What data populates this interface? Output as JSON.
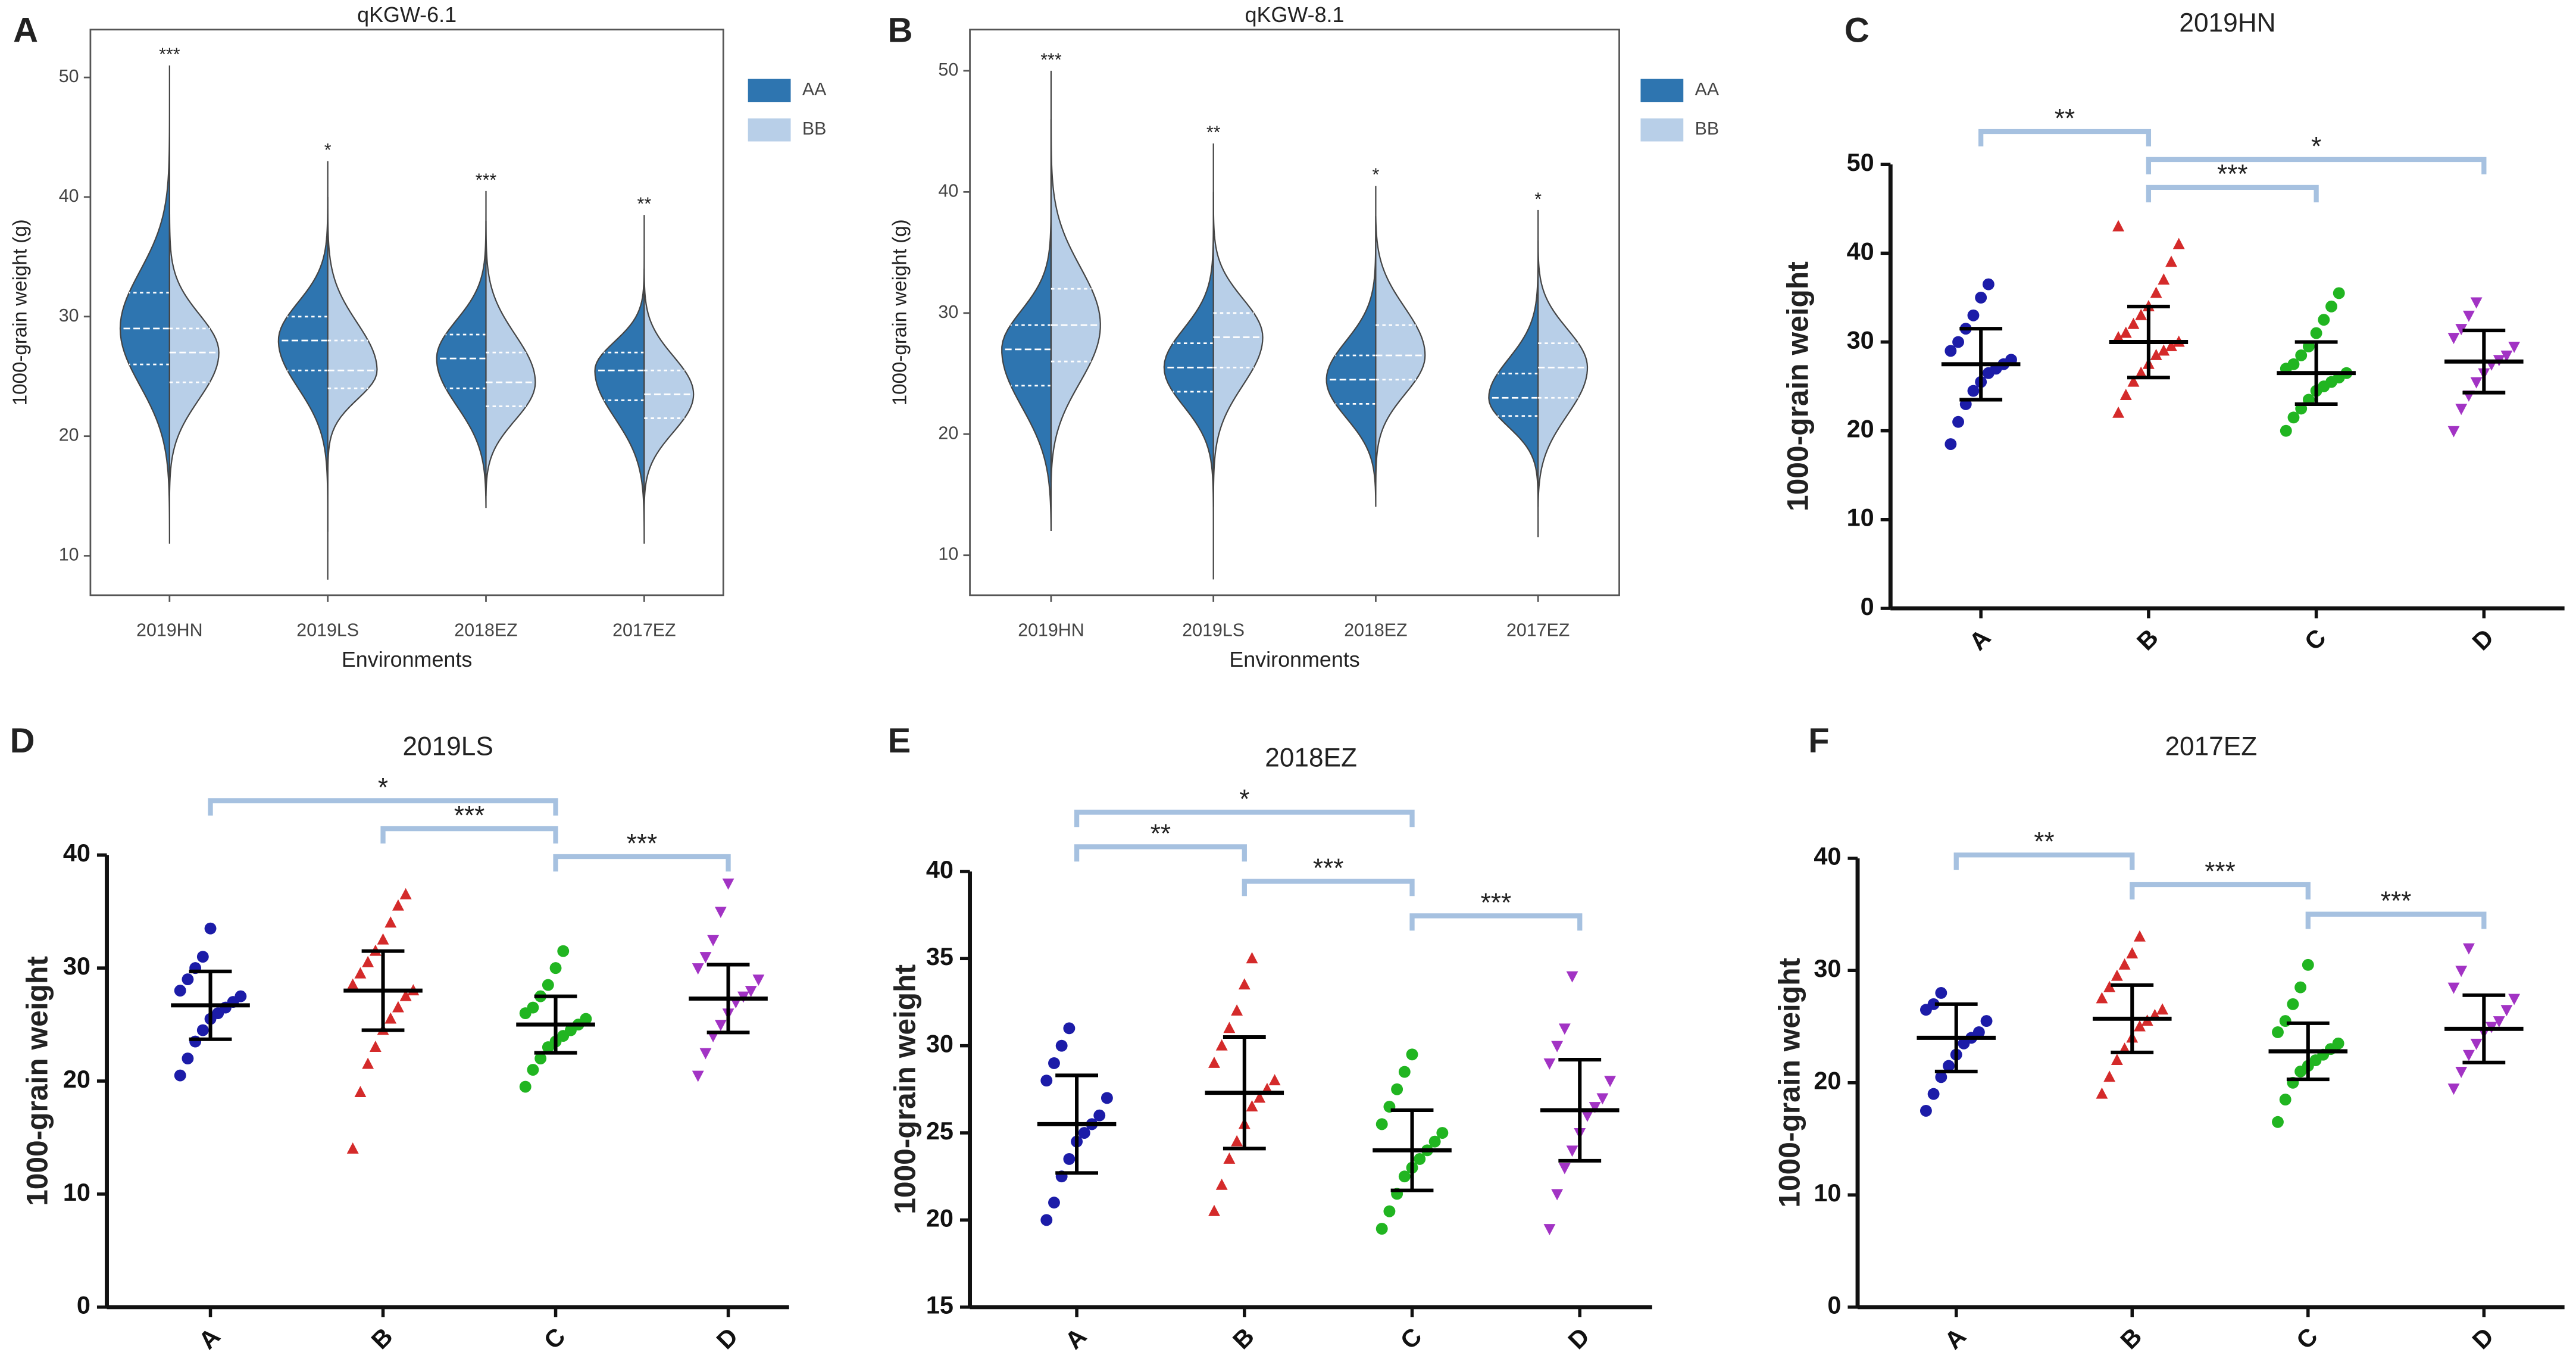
{
  "chart_data": [
    {
      "type": "violin",
      "panel_label": "A",
      "title": "qKGW-6.1",
      "xlabel": "Environments",
      "ylabel": "1000-grain weight (g)",
      "categories": [
        "2019HN",
        "2019LS",
        "2018EZ",
        "2017EZ"
      ],
      "annotations": [
        "***",
        "*",
        "***",
        "**"
      ],
      "ylim": [
        6.7,
        54
      ],
      "yticks": [
        10,
        20,
        30,
        40,
        50
      ],
      "series": [
        {
          "name": "AA",
          "color": "#2e75b0",
          "values": [
            {
              "min": 11,
              "q1": 26,
              "median": 29,
              "q3": 32,
              "max": 51
            },
            {
              "min": 12,
              "q1": 25.5,
              "median": 28,
              "q3": 30,
              "max": 43
            },
            {
              "min": 14,
              "q1": 24,
              "median": 26.5,
              "q3": 28.5,
              "max": 40.5
            },
            {
              "min": 11,
              "q1": 23,
              "median": 25.5,
              "q3": 27,
              "max": 38.5
            }
          ]
        },
        {
          "name": "BB",
          "color": "#b8cfe8",
          "values": [
            {
              "min": 15,
              "q1": 24.5,
              "median": 27,
              "q3": 29,
              "max": 45
            },
            {
              "min": 8,
              "q1": 24,
              "median": 25.5,
              "q3": 28,
              "max": 40
            },
            {
              "min": 15,
              "q1": 22.5,
              "median": 24.5,
              "q3": 27,
              "max": 38
            },
            {
              "min": 14,
              "q1": 21.5,
              "median": 23.5,
              "q3": 25.5,
              "max": 34
            }
          ]
        }
      ]
    },
    {
      "type": "violin",
      "panel_label": "B",
      "title": "qKGW-8.1",
      "xlabel": "Environments",
      "ylabel": "1000-grain weight (g)",
      "categories": [
        "2019HN",
        "2019LS",
        "2018EZ",
        "2017EZ"
      ],
      "annotations": [
        "***",
        "**",
        "*",
        "*"
      ],
      "ylim": [
        6.7,
        53.4
      ],
      "yticks": [
        10,
        20,
        30,
        40,
        50
      ],
      "series": [
        {
          "name": "AA",
          "color": "#2e75b0",
          "values": [
            {
              "min": 12,
              "q1": 24,
              "median": 27,
              "q3": 29,
              "max": 50
            },
            {
              "min": 8,
              "q1": 23.5,
              "median": 25.5,
              "q3": 27.5,
              "max": 44
            },
            {
              "min": 14,
              "q1": 22.5,
              "median": 24.5,
              "q3": 26.5,
              "max": 40.5
            },
            {
              "min": 11.5,
              "q1": 21.5,
              "median": 23,
              "q3": 25,
              "max": 38.5
            }
          ]
        },
        {
          "name": "BB",
          "color": "#b8cfe8",
          "values": [
            {
              "min": 16,
              "q1": 26,
              "median": 29,
              "q3": 32,
              "max": 46
            },
            {
              "min": 14,
              "q1": 25.5,
              "median": 28,
              "q3": 30,
              "max": 40
            },
            {
              "min": 15,
              "q1": 24.5,
              "median": 26.5,
              "q3": 29,
              "max": 38
            },
            {
              "min": 14,
              "q1": 23,
              "median": 25.5,
              "q3": 27.5,
              "max": 36
            }
          ]
        }
      ]
    },
    {
      "type": "dot",
      "panel_label": "C",
      "title": "2019HN",
      "ylabel": "1000-grain weight",
      "categories": [
        "A",
        "B",
        "C",
        "D"
      ],
      "ylim": [
        0,
        50
      ],
      "yticks": [
        0,
        10,
        20,
        30,
        40,
        50
      ],
      "groups": [
        {
          "color": "#1c1ca8",
          "marker": "circle",
          "mean": 27.5,
          "sd": 4,
          "values": [
            18.5,
            21,
            23,
            24.5,
            25.5,
            26.5,
            27,
            27.5,
            28,
            29,
            30,
            31.5,
            33,
            35,
            36.5
          ]
        },
        {
          "color": "#d42a2a",
          "marker": "triangle-up",
          "mean": 30,
          "sd": 4,
          "values": [
            22,
            24,
            25.5,
            26.5,
            27.5,
            28.5,
            29,
            29.5,
            30,
            30.5,
            31,
            32,
            33,
            34,
            35.5,
            37,
            39,
            41,
            43
          ]
        },
        {
          "color": "#21b521",
          "marker": "circle",
          "mean": 26.5,
          "sd": 3.5,
          "values": [
            20,
            21.5,
            22.5,
            23.5,
            24.5,
            25,
            25.5,
            26,
            26.5,
            27,
            27.5,
            28.5,
            29.5,
            31,
            32.5,
            34,
            35.5
          ]
        },
        {
          "color": "#a233c4",
          "marker": "triangle-down",
          "mean": 27.8,
          "sd": 3.5,
          "values": [
            20,
            22.5,
            24,
            25.5,
            26.5,
            27.5,
            28,
            28.5,
            29.5,
            30.5,
            31.5,
            33,
            34.5
          ]
        }
      ],
      "comparisons": [
        {
          "pair": [
            "A",
            "B"
          ],
          "label": "**"
        },
        {
          "pair": [
            "B",
            "D"
          ],
          "label": "*"
        },
        {
          "pair": [
            "B",
            "C"
          ],
          "label": "***"
        }
      ]
    },
    {
      "type": "dot",
      "panel_label": "D",
      "title": "2019LS",
      "ylabel": "1000-grain weight",
      "categories": [
        "A",
        "B",
        "C",
        "D"
      ],
      "ylim": [
        0,
        40
      ],
      "yticks": [
        0,
        10,
        20,
        30,
        40
      ],
      "groups": [
        {
          "color": "#1c1ca8",
          "marker": "circle",
          "mean": 26.7,
          "sd": 3,
          "values": [
            20.5,
            22,
            23.5,
            24.5,
            25.5,
            26,
            26.5,
            27,
            27.5,
            28,
            29,
            30,
            31,
            33.5
          ]
        },
        {
          "color": "#d42a2a",
          "marker": "triangle-up",
          "mean": 28,
          "sd": 3.5,
          "values": [
            14,
            19,
            21.5,
            23,
            24.5,
            25.5,
            26.5,
            27.5,
            28,
            28.5,
            29.5,
            30.5,
            31.5,
            32.5,
            34,
            35.5,
            36.5
          ]
        },
        {
          "color": "#21b521",
          "marker": "circle",
          "mean": 25,
          "sd": 2.5,
          "values": [
            19.5,
            21,
            22,
            23,
            23.5,
            24,
            24.5,
            25,
            25.5,
            26,
            26.5,
            27.5,
            28.5,
            30,
            31.5
          ]
        },
        {
          "color": "#a233c4",
          "marker": "triangle-down",
          "mean": 27.3,
          "sd": 3,
          "values": [
            20.5,
            22.5,
            24,
            25,
            26,
            27,
            27.5,
            28,
            29,
            30,
            31,
            32.5,
            35,
            37.5
          ]
        }
      ],
      "comparisons": [
        {
          "pair": [
            "A",
            "C"
          ],
          "label": "*"
        },
        {
          "pair": [
            "B",
            "C"
          ],
          "label": "***"
        },
        {
          "pair": [
            "C",
            "D"
          ],
          "label": "***"
        }
      ]
    },
    {
      "type": "dot",
      "panel_label": "E",
      "title": "2018EZ",
      "ylabel": "1000-grain weight",
      "categories": [
        "A",
        "B",
        "C",
        "D"
      ],
      "ylim": [
        15,
        40
      ],
      "yticks": [
        15,
        20,
        25,
        30,
        35,
        40
      ],
      "groups": [
        {
          "color": "#1c1ca8",
          "marker": "circle",
          "mean": 25.5,
          "sd": 2.8,
          "values": [
            20,
            21,
            22.5,
            23.5,
            24.5,
            25,
            25.5,
            26,
            27,
            28,
            29,
            30,
            31
          ]
        },
        {
          "color": "#d42a2a",
          "marker": "triangle-up",
          "mean": 27.3,
          "sd": 3.2,
          "values": [
            20.5,
            22,
            23.5,
            24.5,
            25.5,
            26.5,
            27,
            27.5,
            28,
            29,
            30,
            31,
            32,
            33.5,
            35
          ]
        },
        {
          "color": "#21b521",
          "marker": "circle",
          "mean": 24,
          "sd": 2.3,
          "values": [
            19.5,
            20.5,
            21.5,
            22.5,
            23,
            23.5,
            24,
            24.5,
            25,
            25.5,
            26.5,
            27.5,
            28.5,
            29.5
          ]
        },
        {
          "color": "#a233c4",
          "marker": "triangle-down",
          "mean": 26.3,
          "sd": 2.9,
          "values": [
            19.5,
            21.5,
            23,
            24,
            25,
            26,
            26.5,
            27,
            28,
            29,
            30,
            31,
            34
          ]
        }
      ],
      "comparisons": [
        {
          "pair": [
            "A",
            "C"
          ],
          "label": "*"
        },
        {
          "pair": [
            "A",
            "B"
          ],
          "label": "**"
        },
        {
          "pair": [
            "B",
            "C"
          ],
          "label": "***"
        },
        {
          "pair": [
            "C",
            "D"
          ],
          "label": "***"
        }
      ]
    },
    {
      "type": "dot",
      "panel_label": "F",
      "title": "2017EZ",
      "ylabel": "1000-grain weight",
      "categories": [
        "A",
        "B",
        "C",
        "D"
      ],
      "ylim": [
        0,
        40
      ],
      "yticks": [
        0,
        10,
        20,
        30,
        40
      ],
      "groups": [
        {
          "color": "#1c1ca8",
          "marker": "circle",
          "mean": 24,
          "sd": 3,
          "values": [
            17.5,
            19,
            20.5,
            21.5,
            22.5,
            23.5,
            24,
            24.5,
            25.5,
            26.5,
            27,
            28
          ]
        },
        {
          "color": "#d42a2a",
          "marker": "triangle-up",
          "mean": 25.7,
          "sd": 3,
          "values": [
            19,
            20.5,
            22,
            23,
            24,
            25,
            25.5,
            26,
            26.5,
            27.5,
            28.5,
            29.5,
            30.5,
            31.5,
            33
          ]
        },
        {
          "color": "#21b521",
          "marker": "circle",
          "mean": 22.8,
          "sd": 2.5,
          "values": [
            16.5,
            18.5,
            20,
            21,
            21.5,
            22,
            22.5,
            23,
            23.5,
            24.5,
            25.5,
            27,
            28.5,
            30.5
          ]
        },
        {
          "color": "#a233c4",
          "marker": "triangle-down",
          "mean": 24.8,
          "sd": 3,
          "values": [
            19.5,
            21,
            22.5,
            23.5,
            24.5,
            25,
            25.5,
            26.5,
            27.5,
            28.5,
            30,
            32
          ]
        }
      ],
      "comparisons": [
        {
          "pair": [
            "A",
            "B"
          ],
          "label": "**"
        },
        {
          "pair": [
            "B",
            "C"
          ],
          "label": "***"
        },
        {
          "pair": [
            "C",
            "D"
          ],
          "label": "***"
        }
      ]
    }
  ]
}
